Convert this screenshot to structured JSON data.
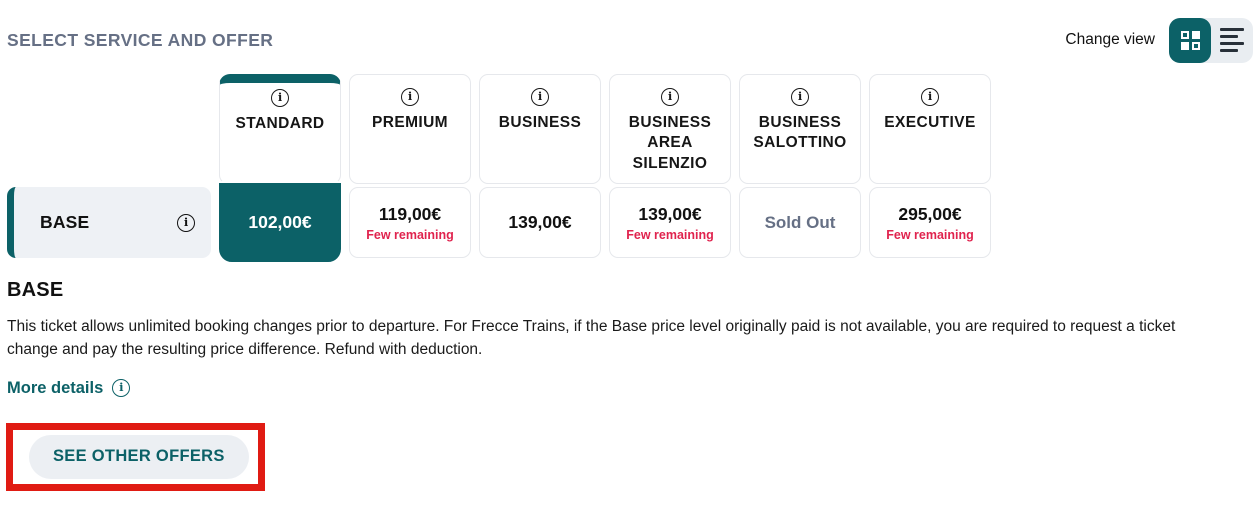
{
  "header": {
    "title": "SELECT SERVICE AND OFFER",
    "change_view_label": "Change view",
    "view_toggle": {
      "active_view": "grid",
      "buttons": [
        {
          "icon": "grid-view-icon",
          "active": true
        },
        {
          "icon": "list-view-icon",
          "active": false
        }
      ]
    }
  },
  "services": [
    {
      "name": "STANDARD",
      "selected": true
    },
    {
      "name": "PREMIUM",
      "selected": false
    },
    {
      "name": "BUSINESS",
      "selected": false
    },
    {
      "name": "BUSINESS AREA SILENZIO",
      "selected": false
    },
    {
      "name": "BUSINESS SALOTTINO",
      "selected": false
    },
    {
      "name": "EXECUTIVE",
      "selected": false
    }
  ],
  "offer_row": {
    "label": "BASE",
    "cells": [
      {
        "price": "102,00€",
        "state": "selected",
        "note": ""
      },
      {
        "price": "119,00€",
        "state": "available",
        "note": "Few remaining"
      },
      {
        "price": "139,00€",
        "state": "available",
        "note": ""
      },
      {
        "price": "139,00€",
        "state": "available",
        "note": "Few remaining"
      },
      {
        "price": "Sold Out",
        "state": "sold-out",
        "note": ""
      },
      {
        "price": "295,00€",
        "state": "available",
        "note": "Few remaining"
      }
    ]
  },
  "offer_details": {
    "heading": "BASE",
    "description": "This ticket allows unlimited booking changes prior to departure. For Frecce Trains, if the Base price level originally paid is not available, you are required to request a ticket change and pay the resulting price difference. Refund with deduction.",
    "more_details_label": "More details",
    "see_other_offers_label": "SEE OTHER OFFERS"
  },
  "colors": {
    "teal_accent": "#0c6167",
    "few_remaining_red": "#e0234e",
    "annotation_red": "#e01b13",
    "sold_out_gray": "#667085",
    "title_gray": "#667085",
    "row_background": "#eef1f5",
    "button_background": "#eceff3"
  }
}
